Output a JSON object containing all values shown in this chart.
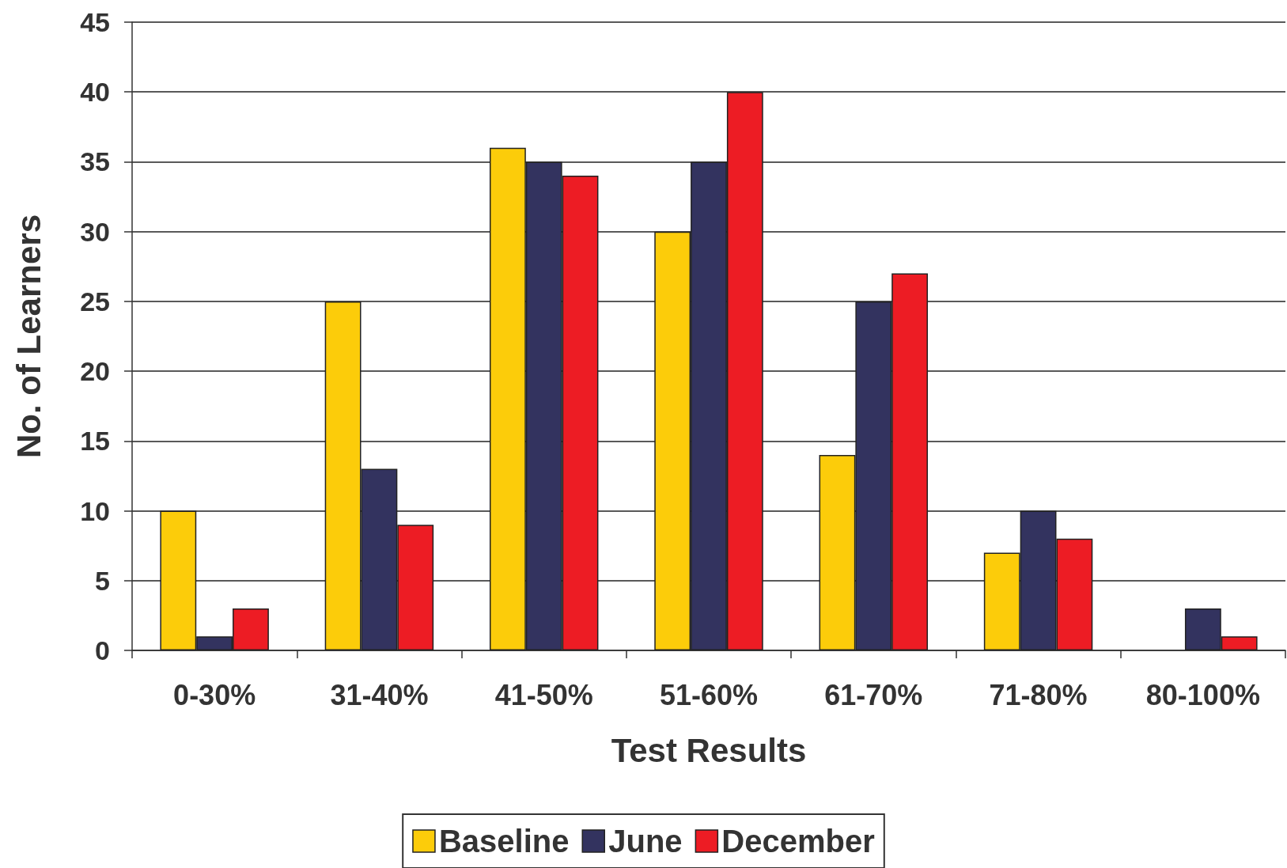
{
  "chart_data": {
    "type": "bar",
    "xlabel": "Test Results",
    "ylabel": "No. of Learners",
    "categories": [
      "0-30%",
      "31-40%",
      "41-50%",
      "51-60%",
      "61-70%",
      "71-80%",
      "80-100%"
    ],
    "series": [
      {
        "name": "Baseline",
        "color": "#fccc0a",
        "values": [
          10,
          25,
          36,
          30,
          14,
          7,
          0
        ]
      },
      {
        "name": "June",
        "color": "#33335f",
        "values": [
          1,
          13,
          35,
          35,
          25,
          10,
          3
        ]
      },
      {
        "name": "December",
        "color": "#ed1c24",
        "values": [
          3,
          9,
          34,
          40,
          27,
          8,
          1
        ]
      }
    ],
    "ylim": [
      0,
      45
    ],
    "yticks": [
      0,
      5,
      10,
      15,
      20,
      25,
      30,
      35,
      40,
      45
    ],
    "grid": "y",
    "legend": "bottom"
  }
}
